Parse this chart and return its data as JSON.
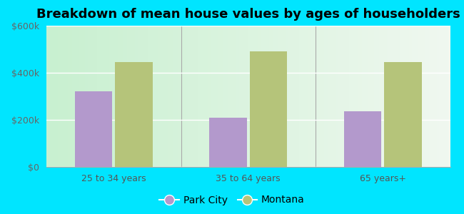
{
  "title": "Breakdown of mean house values by ages of householders",
  "categories": [
    "25 to 34 years",
    "35 to 64 years",
    "65 years+"
  ],
  "park_city_values": [
    320000,
    210000,
    235000
  ],
  "montana_values": [
    445000,
    490000,
    445000
  ],
  "park_city_color": "#b399cc",
  "montana_color": "#b5c47a",
  "ylim": [
    0,
    600000
  ],
  "yticks": [
    0,
    200000,
    400000,
    600000
  ],
  "ytick_labels": [
    "$0",
    "$200k",
    "$400k",
    "$600k"
  ],
  "outer_bg_color": "#00e5ff",
  "legend_labels": [
    "Park City",
    "Montana"
  ],
  "bar_width": 0.28,
  "title_fontsize": 13,
  "tick_fontsize": 9,
  "legend_fontsize": 10
}
